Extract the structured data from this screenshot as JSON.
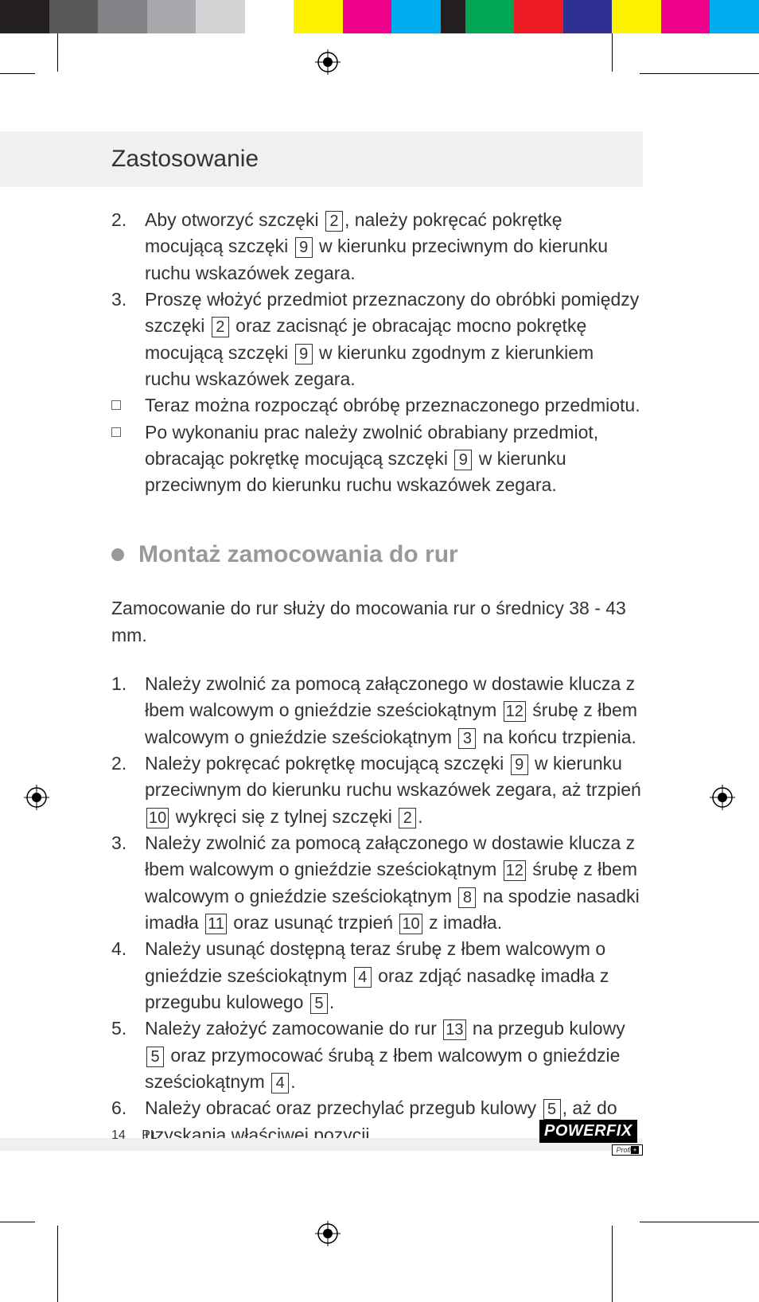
{
  "colorbar": [
    "#231f20",
    "#58595b",
    "#808285",
    "#a7a9ac",
    "#d1d3d4",
    "#ffffff",
    "#fff200",
    "#ec008c",
    "#00aeef",
    "#231f20",
    "#00a651",
    "#ed1c24",
    "#2e3192",
    "#fff200",
    "#ec008c",
    "#00aeef"
  ],
  "header": {
    "title": "Zastosowanie"
  },
  "section1": {
    "items": [
      {
        "num": "2.",
        "parts": [
          "Aby otworzyć szczęki ",
          {
            "ref": "2"
          },
          ", należy pokręcać pokrętkę mocującą szczęki ",
          {
            "ref": "9"
          },
          " w kierunku przeciwnym do kierunku ruchu wskazówek zegara."
        ]
      },
      {
        "num": "3.",
        "parts": [
          "Proszę włożyć przedmiot przeznaczony do obróbki pomiędzy szczęki ",
          {
            "ref": "2"
          },
          " oraz zacisnąć je obracając mocno pokrętkę mocującą szczęki ",
          {
            "ref": "9"
          },
          " w kierunku zgodnym z kierunkiem ruchu wskazówek zegara."
        ]
      },
      {
        "bullet": true,
        "parts": [
          "Teraz można rozpocząć obróbę przeznaczonego przedmiotu."
        ]
      },
      {
        "bullet": true,
        "parts": [
          "Po wykonaniu prac należy zwolnić obrabiany przedmiot, obracając pokrętkę mocującą szczęki ",
          {
            "ref": "9"
          },
          " w kierunku przeciwnym do kierunku ruchu wskazówek zegara."
        ]
      }
    ]
  },
  "section2": {
    "heading": "Montaż zamocowania do rur",
    "intro": "Zamocowanie do rur służy do mocowania rur o średnicy 38 - 43 mm.",
    "items": [
      {
        "num": "1.",
        "parts": [
          "Należy zwolnić za pomocą załączonego w dostawie klucza z łbem walcowym o gnieździe sześciokątnym ",
          {
            "ref": "12"
          },
          " śrubę z łbem walcowym o gnieździe sześciokątnym ",
          {
            "ref": "3"
          },
          " na końcu trzpienia."
        ]
      },
      {
        "num": "2.",
        "parts": [
          "Należy pokręcać pokrętkę mocującą szczęki ",
          {
            "ref": "9"
          },
          " w kierunku przeciwnym do kierunku ruchu wskazówek zegara, aż trzpień ",
          {
            "ref": "10"
          },
          " wykręci się z tylnej szczęki ",
          {
            "ref": "2"
          },
          "."
        ]
      },
      {
        "num": "3.",
        "parts": [
          "Należy zwolnić za pomocą załączonego w dostawie klucza z łbem walcowym o gnieździe sześciokątnym ",
          {
            "ref": "12"
          },
          " śrubę z łbem walcowym o gnieździe sześciokątnym ",
          {
            "ref": "8"
          },
          " na spodzie nasadki imadła ",
          {
            "ref": "11"
          },
          " oraz usunąć trzpień ",
          {
            "ref": "10"
          },
          " z imadła."
        ]
      },
      {
        "num": "4.",
        "parts": [
          "Należy usunąć dostępną teraz śrubę z łbem walcowym o gnieździe sześciokątnym ",
          {
            "ref": "4"
          },
          " oraz zdjąć nasadkę imadła z przegubu kulowego ",
          {
            "ref": "5"
          },
          "."
        ]
      },
      {
        "num": "5.",
        "parts": [
          "Należy założyć zamocowanie do rur ",
          {
            "ref": "13"
          },
          " na przegub kulowy ",
          {
            "ref": "5"
          },
          " oraz przymocować śrubą z łbem walcowym o gnieździe sześciokątnym ",
          {
            "ref": "4"
          },
          "."
        ]
      },
      {
        "num": "6.",
        "parts": [
          "Należy obracać oraz przechylać przegub kulowy ",
          {
            "ref": "5"
          },
          ", aż do uzyskania właściwej pozycji."
        ]
      }
    ]
  },
  "footer": {
    "page": "14",
    "lang": "PL",
    "logo_main": "POWERFIX",
    "logo_sub": "Profi"
  }
}
